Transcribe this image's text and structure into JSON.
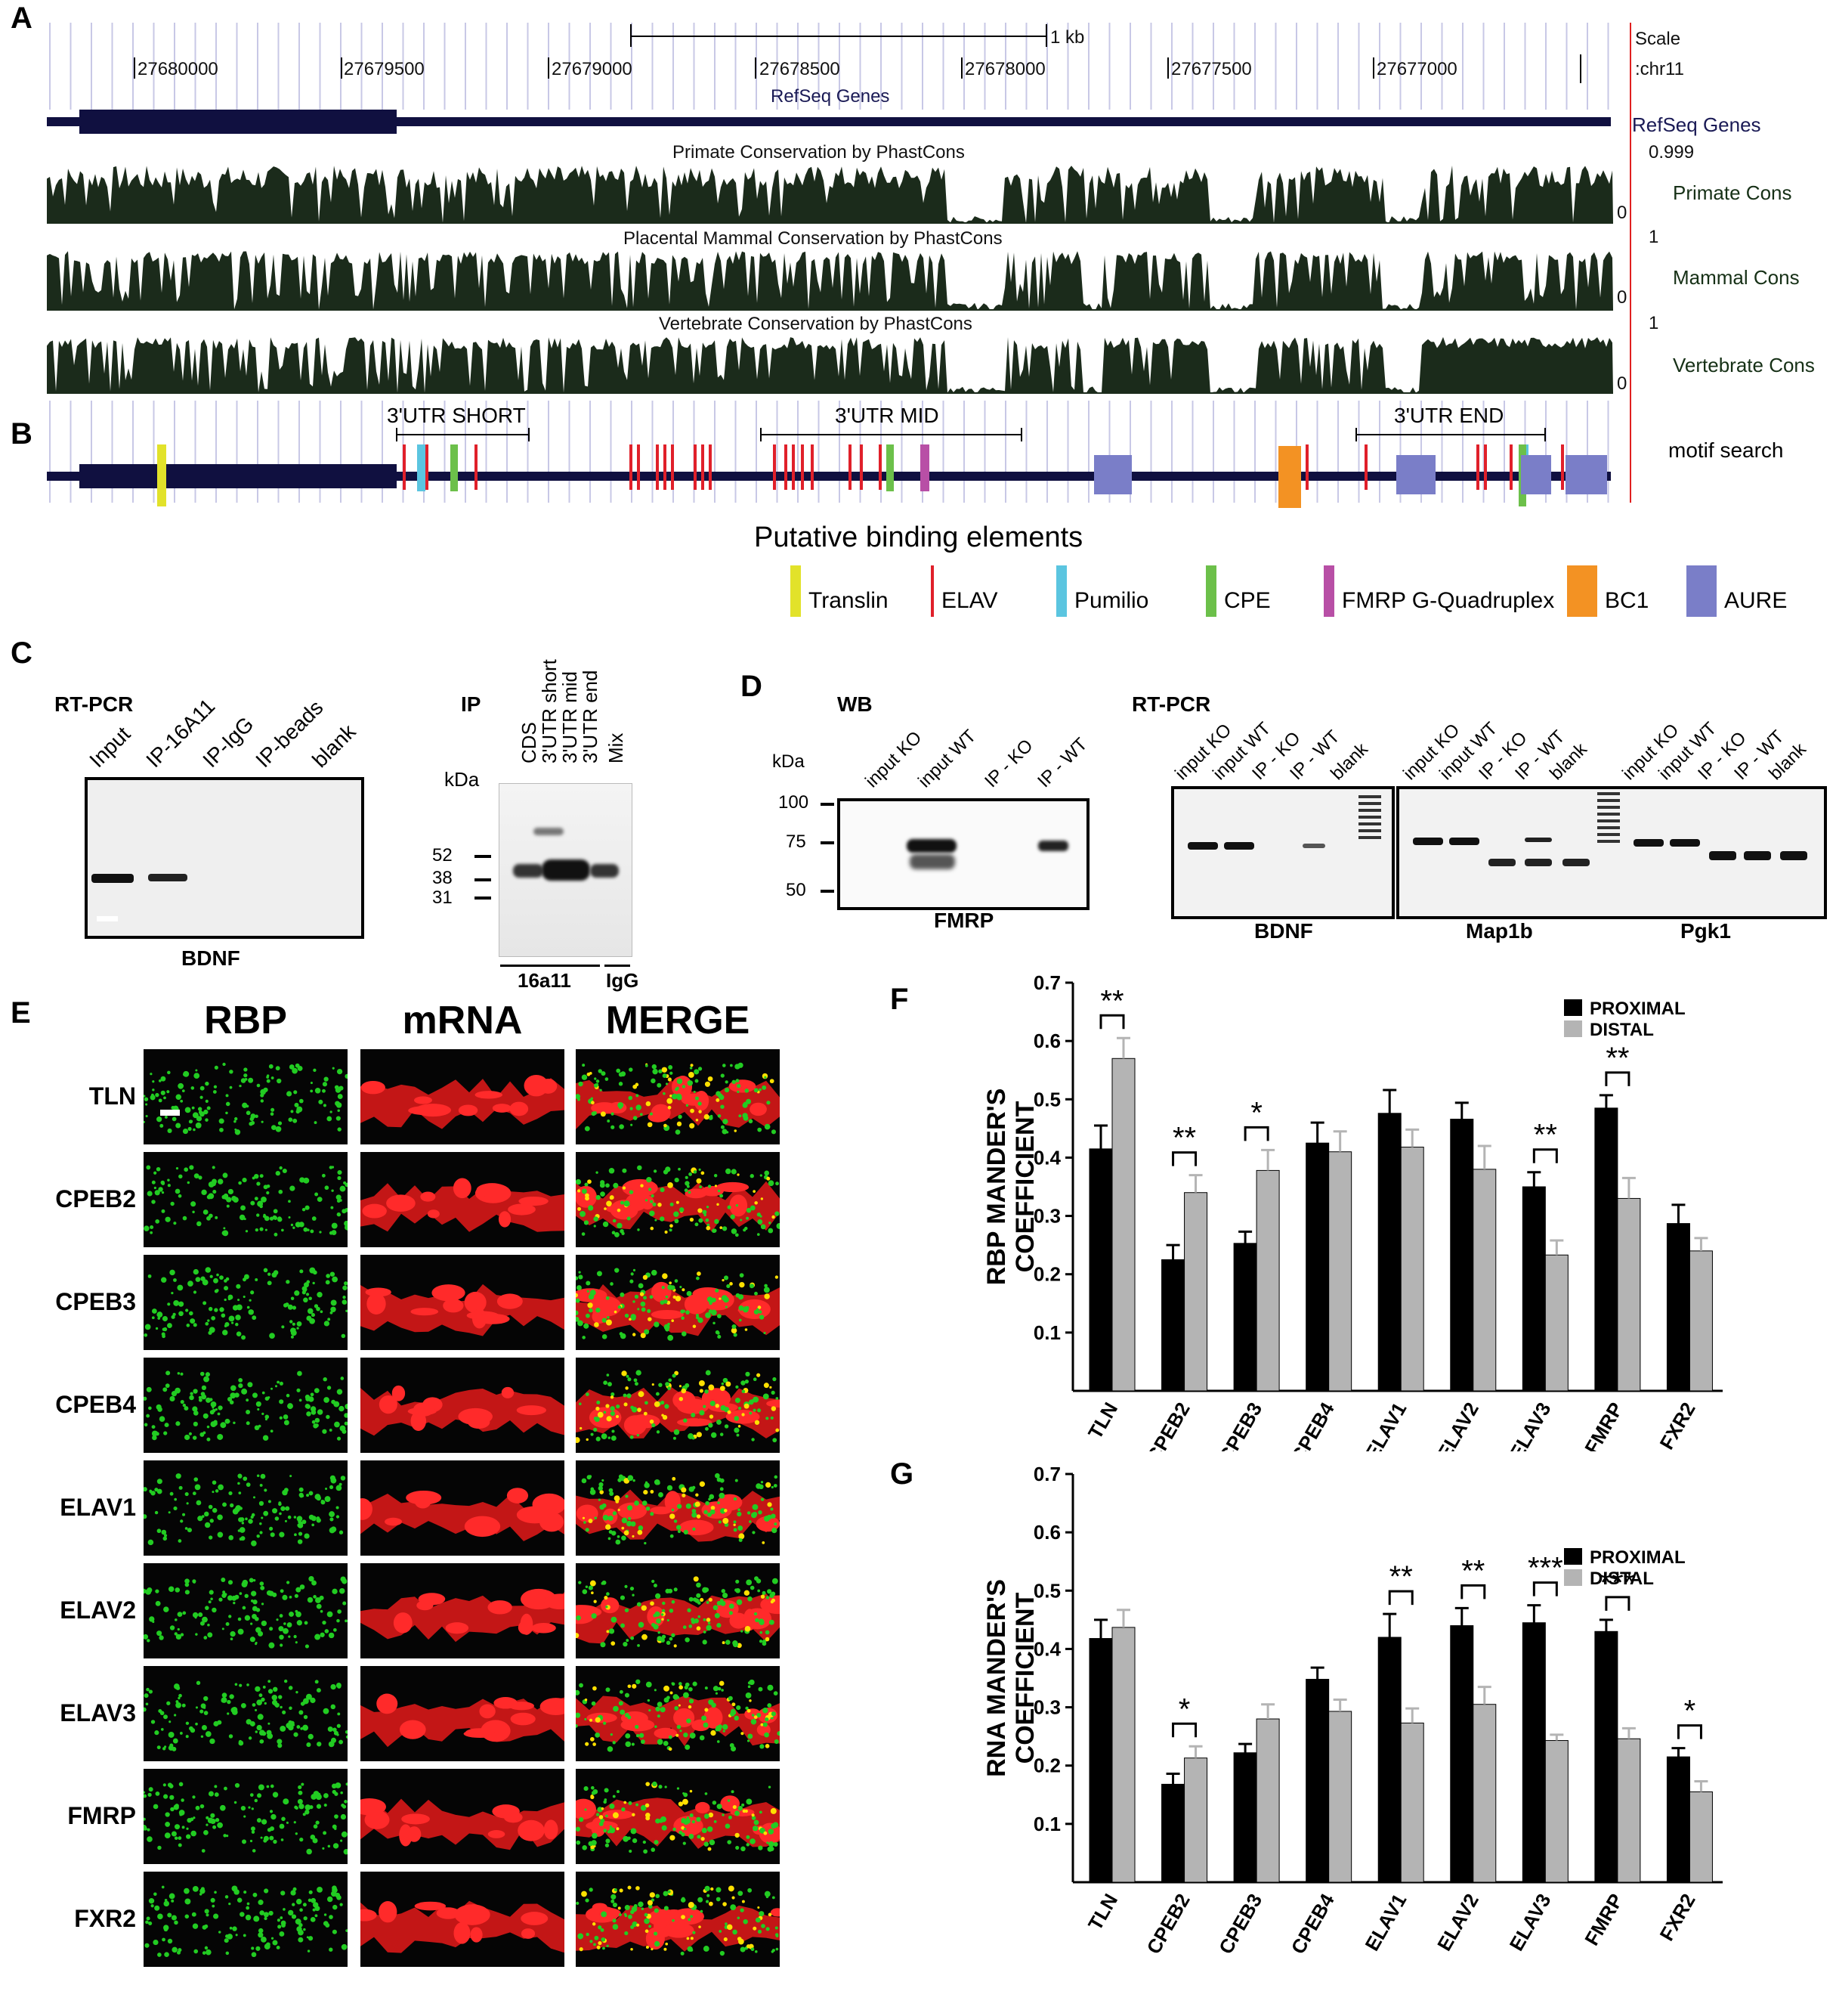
{
  "panels": {
    "A": "A",
    "B": "B",
    "C": "C",
    "D": "D",
    "E": "E",
    "F": "F",
    "G": "G"
  },
  "genome_browser": {
    "scale_label": "Scale",
    "chrom_label": ":chr11",
    "scalebar_label": "1 kb",
    "coords": [
      "27680000",
      "27679500",
      "27679000",
      "27678500",
      "27678000",
      "27677500",
      "27677000"
    ],
    "refseq_title": "RefSeq Genes",
    "refseq_side": "RefSeq Genes",
    "tracks": [
      {
        "title": "Primate Conservation by PhastCons",
        "side": "Primate Cons",
        "max": "0.999",
        "min": "0"
      },
      {
        "title": "Placental Mammal Conservation by PhastCons",
        "side": "Mammal Cons",
        "max": "1",
        "min": "0"
      },
      {
        "title": "Vertebrate Conservation by PhastCons",
        "side": "Vertebrate Cons",
        "max": "1",
        "min": "0"
      }
    ],
    "colors": {
      "track": "#1b2b1b",
      "gene": "#101040",
      "grid": "#c8c8e6"
    }
  },
  "motif": {
    "side": "motif search",
    "regions": [
      "3'UTR SHORT",
      "3'UTR MID",
      "3'UTR END"
    ],
    "legend_title": "Putative binding elements",
    "legend": [
      {
        "label": "Translin",
        "color": "#e2e22a"
      },
      {
        "label": "ELAV",
        "color": "#e0202a"
      },
      {
        "label": "Pumilio",
        "color": "#5bc5e0"
      },
      {
        "label": "CPE",
        "color": "#6cc04a"
      },
      {
        "label": "FMRP G-Quadruplex",
        "color": "#b84fa6"
      },
      {
        "label": "BC1",
        "color": "#f39223"
      },
      {
        "label": "AURE",
        "color": "#7a7ec8"
      }
    ]
  },
  "panel_c": {
    "rtpcr_title": "RT-PCR",
    "lanes": [
      "Input",
      "IP-16A11",
      "IP-IgG",
      "IP-beads",
      "blank"
    ],
    "gel_label": "BDNF",
    "ip_title": "IP",
    "ip_lanes": [
      "CDS",
      "3'UTR short",
      "3'UTR mid",
      "3'UTR end",
      "Mix"
    ],
    "kda": "kDa",
    "markers": [
      "52",
      "38",
      "31"
    ],
    "antibody": "16a11",
    "igg": "IgG"
  },
  "panel_d": {
    "wb_title": "WB",
    "kda": "kDa",
    "wb_lanes": [
      "input KO",
      "input WT",
      "IP - KO",
      "IP - WT"
    ],
    "markers": [
      "100",
      "75",
      "50"
    ],
    "wb_label": "FMRP",
    "rtpcr_title": "RT-PCR",
    "gel1_lanes": [
      "input KO",
      "input WT",
      "IP - KO",
      "IP - WT",
      "blank"
    ],
    "gel2_lanes": [
      "input KO",
      "input WT",
      "IP - KO",
      "IP - WT",
      "blank",
      "input KO",
      "input WT",
      "IP - KO",
      "IP - WT",
      "blank"
    ],
    "genes": [
      "BDNF",
      "Map1b",
      "Pgk1"
    ]
  },
  "panel_e": {
    "columns": [
      "RBP",
      "mRNA",
      "MERGE"
    ],
    "rows": [
      "TLN",
      "CPEB2",
      "CPEB3",
      "CPEB4",
      "ELAV1",
      "ELAV2",
      "ELAV3",
      "FMRP",
      "FXR2"
    ]
  },
  "chart_data": [
    {
      "type": "bar",
      "panel": "F",
      "ylabel": "RBP MANDER'S COEFFICIENT",
      "ylim": [
        0,
        0.7
      ],
      "yticks": [
        "0.1",
        "0.2",
        "0.3",
        "0.4",
        "0.5",
        "0.6",
        "0.7"
      ],
      "categories": [
        "TLN",
        "CPEB2",
        "CPEB3",
        "CPEB4",
        "ELAV1",
        "ELAV2",
        "ELAV3",
        "FMRP",
        "FXR2"
      ],
      "series": [
        {
          "name": "PROXIMAL",
          "color": "#000000",
          "values": [
            0.415,
            0.225,
            0.253,
            0.425,
            0.476,
            0.466,
            0.35,
            0.485,
            0.287
          ],
          "errors": [
            0.04,
            0.025,
            0.02,
            0.035,
            0.04,
            0.028,
            0.025,
            0.022,
            0.032
          ]
        },
        {
          "name": "DISTAL",
          "color": "#b4b4b4",
          "values": [
            0.57,
            0.34,
            0.378,
            0.41,
            0.418,
            0.38,
            0.233,
            0.33,
            0.24
          ],
          "errors": [
            0.035,
            0.03,
            0.035,
            0.035,
            0.03,
            0.04,
            0.025,
            0.035,
            0.022
          ]
        }
      ],
      "significance": [
        "**",
        "**",
        "*",
        "",
        "",
        "",
        "**",
        "**",
        ""
      ]
    },
    {
      "type": "bar",
      "panel": "G",
      "ylabel": "RNA MANDER'S COEFFICIENT",
      "ylim": [
        0,
        0.7
      ],
      "yticks": [
        "0.1",
        "0.2",
        "0.3",
        "0.4",
        "0.5",
        "0.6",
        "0.7"
      ],
      "categories": [
        "TLN",
        "CPEB2",
        "CPEB3",
        "CPEB4",
        "ELAV1",
        "ELAV2",
        "ELAV3",
        "FMRP",
        "FXR2"
      ],
      "series": [
        {
          "name": "PROXIMAL",
          "color": "#000000",
          "values": [
            0.418,
            0.168,
            0.222,
            0.348,
            0.42,
            0.44,
            0.445,
            0.43,
            0.215
          ],
          "errors": [
            0.032,
            0.018,
            0.015,
            0.02,
            0.04,
            0.03,
            0.03,
            0.02,
            0.015
          ]
        },
        {
          "name": "DISTAL",
          "color": "#b4b4b4",
          "values": [
            0.437,
            0.213,
            0.28,
            0.293,
            0.273,
            0.305,
            0.243,
            0.246,
            0.155
          ],
          "errors": [
            0.03,
            0.02,
            0.025,
            0.02,
            0.025,
            0.03,
            0.01,
            0.018,
            0.018
          ]
        }
      ],
      "significance": [
        "",
        "*",
        "",
        "",
        "**",
        "**",
        "***",
        "***",
        "*"
      ]
    }
  ]
}
